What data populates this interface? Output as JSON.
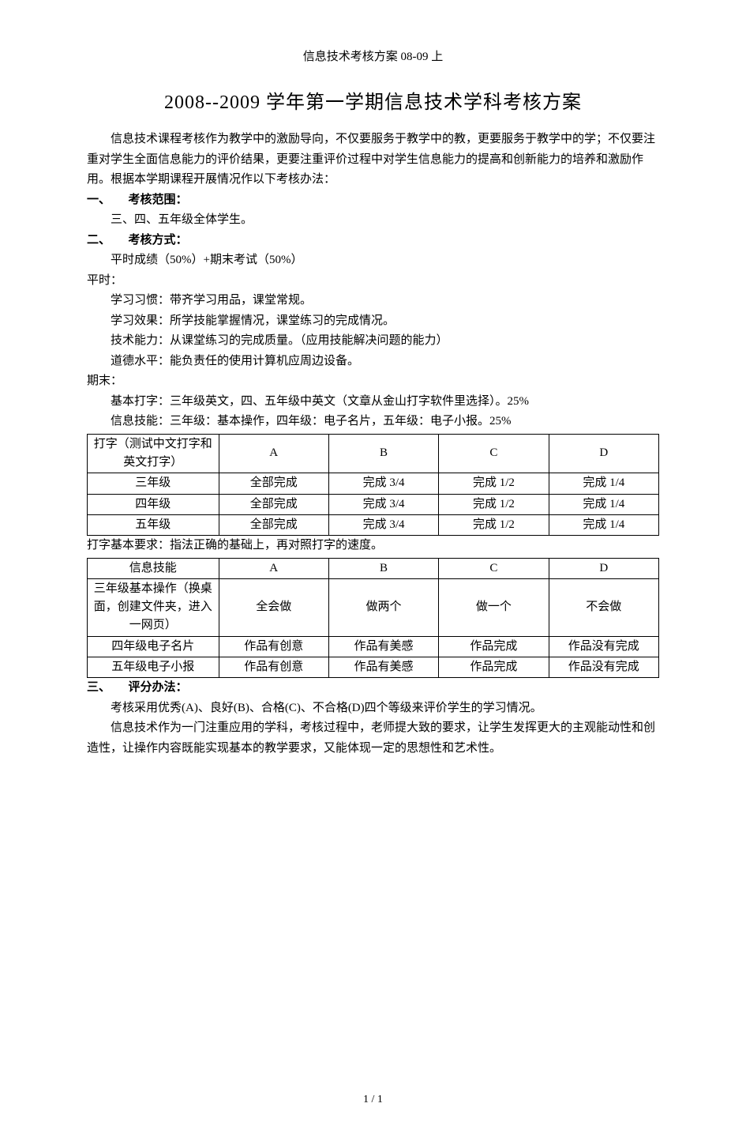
{
  "header": "信息技术考核方案 08-09 上",
  "title": "2008--2009 学年第一学期信息技术学科考核方案",
  "intro": "信息技术课程考核作为教学中的激励导向，不仅要服务于教学中的教，更要服务于教学中的学；不仅要注重对学生全面信息能力的评价结果，更要注重评价过程中对学生信息能力的提高和创新能力的培养和激励作用。根据本学期课程开展情况作以下考核办法：",
  "sec1": {
    "head": "一、　　考核范围：",
    "body": "三、四、五年级全体学生。"
  },
  "sec2": {
    "head": "二、　　考核方式：",
    "formula": "平时成绩（50%）+期末考试（50%）",
    "normal_head": "平时：",
    "normal_lines": {
      "l1": "学习习惯：带齐学习用品，课堂常规。",
      "l2": "学习效果：所学技能掌握情况，课堂练习的完成情况。",
      "l3": "技术能力：从课堂练习的完成质量。（应用技能解决问题的能力）",
      "l4": "道德水平：能负责任的使用计算机应周边设备。"
    },
    "final_head": "期末：",
    "final_lines": {
      "l1": "基本打字：三年级英文，四、五年级中英文（文章从金山打字软件里选择）。25%",
      "l2": "信息技能：三年级：基本操作，四年级：电子名片，五年级：电子小报。25%"
    }
  },
  "table1": {
    "headers": {
      "c0": "打字（测试中文打字和英文打字）",
      "c1": "A",
      "c2": "B",
      "c3": "C",
      "c4": "D"
    },
    "rows": {
      "r1": {
        "c0": "三年级",
        "c1": "全部完成",
        "c2": "完成 3/4",
        "c3": "完成 1/2",
        "c4": "完成 1/4"
      },
      "r2": {
        "c0": "四年级",
        "c1": "全部完成",
        "c2": "完成 3/4",
        "c3": "完成 1/2",
        "c4": "完成 1/4"
      },
      "r3": {
        "c0": "五年级",
        "c1": "全部完成",
        "c2": "完成 3/4",
        "c3": "完成 1/2",
        "c4": "完成 1/4"
      }
    },
    "note": "打字基本要求：指法正确的基础上，再对照打字的速度。"
  },
  "table2": {
    "headers": {
      "c0": "信息技能",
      "c1": "A",
      "c2": "B",
      "c3": "C",
      "c4": "D"
    },
    "rows": {
      "r1": {
        "c0": "三年级基本操作（换桌面，创建文件夹，进入一网页）",
        "c1": "全会做",
        "c2": "做两个",
        "c3": "做一个",
        "c4": "不会做"
      },
      "r2": {
        "c0": "四年级电子名片",
        "c1": "作品有创意",
        "c2": "作品有美感",
        "c3": "作品完成",
        "c4": "作品没有完成"
      },
      "r3": {
        "c0": "五年级电子小报",
        "c1": "作品有创意",
        "c2": "作品有美感",
        "c3": "作品完成",
        "c4": "作品没有完成"
      }
    }
  },
  "sec3": {
    "head": "三、　　评分办法：",
    "p1": "考核采用优秀(A)、良好(B)、合格(C)、不合格(D)四个等级来评价学生的学习情况。",
    "p2": "信息技术作为一门注重应用的学科，考核过程中，老师提大致的要求，让学生发挥更大的主观能动性和创造性，让操作内容既能实现基本的教学要求，又能体现一定的思想性和艺术性。"
  },
  "footer": "1 / 1"
}
